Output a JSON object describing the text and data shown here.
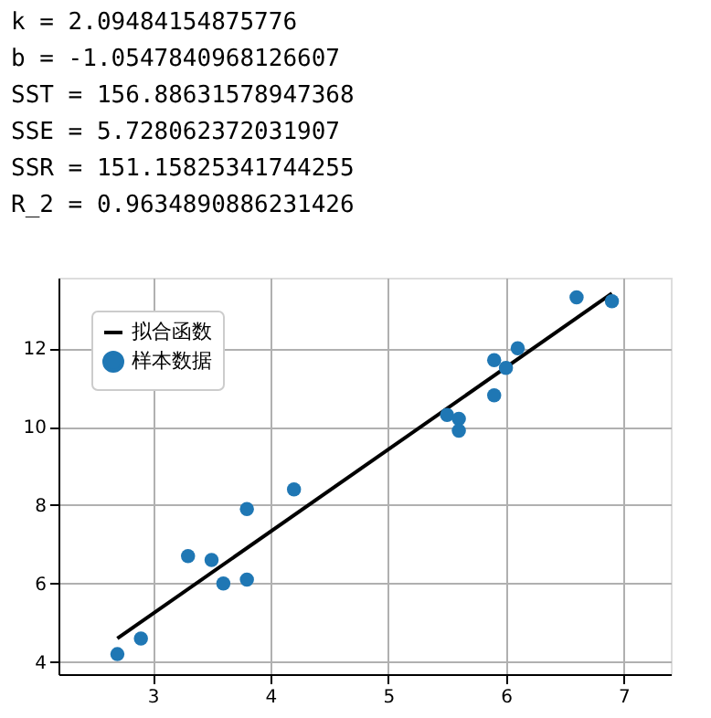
{
  "chart_data": {
    "type": "scatter",
    "annotations": [
      "k =  2.09484154875776",
      "b =  -1.0547840968126607",
      "SST =  156.88631578947368",
      "SSE =  5.728062372031907",
      "SSR =  151.15825341744255",
      "R_2 =  0.9634890886231426"
    ],
    "series": [
      {
        "name": "拟合函数",
        "type": "line",
        "color": "#000000",
        "x": [
          2.7,
          6.9
        ],
        "values": [
          4.6,
          13.4
        ],
        "marker": "none",
        "line_style": "solid"
      },
      {
        "name": "样本数据",
        "color": "#1f77b4",
        "marker": "circle",
        "x": [
          2.7,
          2.9,
          3.3,
          3.5,
          3.6,
          3.8,
          3.8,
          4.2,
          5.5,
          5.6,
          5.6,
          5.9,
          5.9,
          6.0,
          6.1,
          6.6,
          6.9
        ],
        "values": [
          4.2,
          4.6,
          6.7,
          6.6,
          6.0,
          6.1,
          7.9,
          8.4,
          10.3,
          10.2,
          9.9,
          11.7,
          10.8,
          11.5,
          12.0,
          13.3,
          13.2
        ]
      }
    ],
    "xlim": [
      2.2,
      7.4
    ],
    "xticks": [
      3,
      4,
      5,
      6,
      7
    ],
    "ylim": [
      3.69,
      13.8
    ],
    "yticks": [
      4,
      6,
      8,
      10,
      12
    ],
    "grid": true,
    "legend": "top left"
  }
}
